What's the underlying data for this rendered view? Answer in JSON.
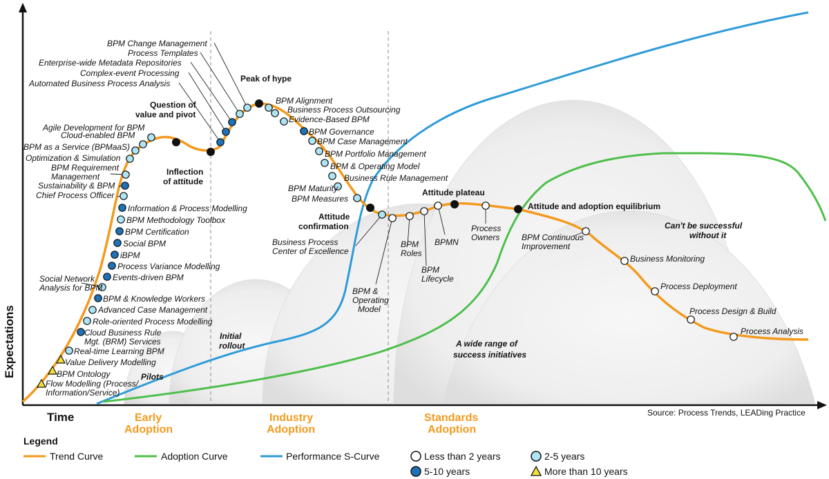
{
  "axes": {
    "y_title": "Expectations",
    "x_title": "Time"
  },
  "source": "Source: Process Trends, LEADing Practice",
  "phases": [
    "Early",
    "Adoption",
    "Industry",
    "Adoption",
    "Standards",
    "Adoption"
  ],
  "regions": {
    "pilots": "Pilots",
    "initial_rollout_1": "Initial",
    "initial_rollout_2": "rollout",
    "wide_range_1": "A wide range of",
    "wide_range_2": "success initiatives",
    "cant_1": "Can't be successful",
    "cant_2": "without it"
  },
  "milestones": {
    "peak": "Peak of hype",
    "question_1": "Question of",
    "question_2": "value and pivot",
    "inflection_1": "Inflection",
    "inflection_2": "of attitude",
    "confirmation_1": "Attitude",
    "confirmation_2": "confirmation",
    "plateau": "Attitude plateau",
    "equilibrium": "Attitude and adoption equilibrium"
  },
  "legend": {
    "title": "Legend",
    "trend": "Trend Curve",
    "adoption": "Adoption Curve",
    "performance": "Performance S-Curve",
    "lt2": "Less than 2 years",
    "y2to5": "2-5 years",
    "y5to10": "5-10 years",
    "gt10": "More than 10 years"
  },
  "colors": {
    "trend": "#f39a1e",
    "adoption": "#4dbf4a",
    "performance": "#2f9bd7",
    "lt2": "#ffffff",
    "y2to5": "#aee4f3",
    "y5to10": "#1e72b8",
    "gt10": "#f5e13a"
  },
  "trend_items": [
    {
      "name": "Flow Modelling (Process/",
      "cont": "Information/Service)",
      "cat": "gt10"
    },
    {
      "name": "BPM Ontology",
      "cat": "gt10"
    },
    {
      "name": "Value Delivery Modelling",
      "cat": "gt10"
    },
    {
      "name": "Real-time Learning BPM",
      "cat": "y2to5"
    },
    {
      "name": "Cloud Business Rule",
      "cont": "Mgt. (BRM) Services",
      "cat": "y5to10"
    },
    {
      "name": "Role-oriented Process Modelling",
      "cat": "y2to5"
    },
    {
      "name": "Advanced Case Management",
      "cat": "y2to5"
    },
    {
      "name": "BPM & Knowledge Workers",
      "cat": "y5to10"
    },
    {
      "name": "Social Network",
      "cont": "Analysis for BPM",
      "cat": "y2to5"
    },
    {
      "name": "Events-driven BPM",
      "cat": "y5to10"
    },
    {
      "name": "Process Variance Modelling",
      "cat": "y5to10"
    },
    {
      "name": "iBPM",
      "cat": "y5to10"
    },
    {
      "name": "Social BPM",
      "cat": "y5to10"
    },
    {
      "name": "BPM Certification",
      "cat": "y5to10"
    },
    {
      "name": "BPM Methodology Toolbox",
      "cat": "y2to5"
    },
    {
      "name": "Information & Process Modelling",
      "cat": "y5to10"
    },
    {
      "name": "Chief Process Officer",
      "cat": "y2to5"
    },
    {
      "name": "Sustainability & BPM",
      "cat": "y5to10"
    },
    {
      "name": "BPM Requirement",
      "cont": "Management",
      "cat": "y2to5"
    },
    {
      "name": "Optimization & Simulation",
      "cat": "y2to5"
    },
    {
      "name": "BPM as a Service (BPMaaS)",
      "cat": "y2to5"
    },
    {
      "name": "Cloud-enabled BPM",
      "cat": "y2to5"
    },
    {
      "name": "Agile Development for BPM",
      "cat": "y2to5"
    },
    {
      "name": "Automated Business Process Analysis",
      "cat": "y5to10"
    },
    {
      "name": "Complex-event Processing",
      "cat": "y5to10"
    },
    {
      "name": "Enterprise-wide Metadata Repositories",
      "cat": "y5to10"
    },
    {
      "name": "Process Templates",
      "cat": "y2to5"
    },
    {
      "name": "BPM Change Management",
      "cat": "y2to5"
    },
    {
      "name": "BPM Alignment",
      "cat": "y2to5"
    },
    {
      "name": "Business Process Outsourcing",
      "cat": "y2to5"
    },
    {
      "name": "Evidence-Based BPM",
      "cat": "y2to5"
    },
    {
      "name": "BPM Governance",
      "cat": "y5to10"
    },
    {
      "name": "BPM Case Management",
      "cat": "y2to5"
    },
    {
      "name": "BPM Portfolio Management",
      "cat": "y2to5"
    },
    {
      "name": "BPM & Operating Model",
      "cat": "y2to5"
    },
    {
      "name": "Business Rule Management",
      "cat": "y2to5"
    },
    {
      "name": "BPM Maturity",
      "cat": "y2to5"
    },
    {
      "name": "BPM Measures",
      "cat": "y2to5"
    },
    {
      "name": "Business Process",
      "cont": "Center of Excellence",
      "cat": "y2to5"
    },
    {
      "name": "BPM &",
      "cont": "Operating",
      "cont2": "Model",
      "cat": "lt2"
    },
    {
      "name": "BPM",
      "cont": "Roles",
      "cat": "lt2"
    },
    {
      "name": "BPM",
      "cont": "Lifecycle",
      "cat": "lt2"
    },
    {
      "name": "BPMN",
      "cat": "lt2"
    },
    {
      "name": "Process",
      "cont": "Owners",
      "cat": "lt2"
    },
    {
      "name": "BPM Continuous",
      "cont": "Improvement",
      "cat": "lt2"
    },
    {
      "name": "Business Monitoring",
      "cat": "lt2"
    },
    {
      "name": "Process Deployment",
      "cat": "lt2"
    },
    {
      "name": "Process Design & Build",
      "cat": "lt2"
    },
    {
      "name": "Process Analysis",
      "cat": "lt2"
    }
  ]
}
